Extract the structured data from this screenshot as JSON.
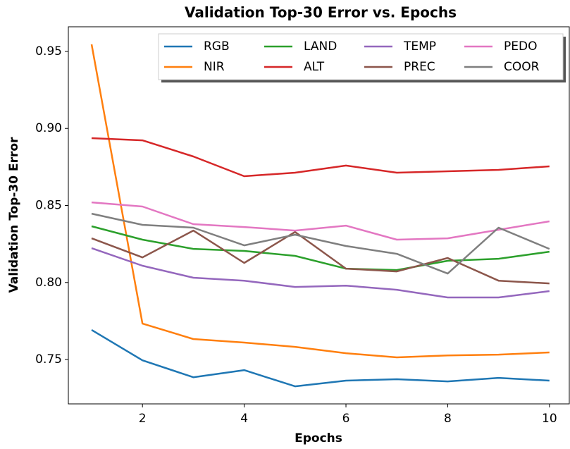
{
  "chart_data": {
    "type": "line",
    "title": "Validation Top-30 Error vs. Epochs",
    "xlabel": "Epochs",
    "ylabel": "Validation Top-30 Error",
    "x": [
      1,
      2,
      3,
      4,
      5,
      6,
      7,
      8,
      9,
      10
    ],
    "xlim": [
      0.543,
      10.39
    ],
    "xticks": [
      2,
      4,
      6,
      8,
      10
    ],
    "ylim": [
      0.7212,
      0.966
    ],
    "yticks": [
      0.75,
      {
        "value": 0.8,
        "label": "0.80"
      },
      0.85,
      {
        "value": 0.9,
        "label": "0.90"
      },
      0.95
    ],
    "legend": "upper right",
    "legend_columns": 4,
    "series": [
      {
        "name": "RGB",
        "color": "#1f77b4",
        "values": [
          0.7692,
          0.7495,
          0.7385,
          0.7431,
          0.7326,
          0.7363,
          0.7372,
          0.7358,
          0.7381,
          0.7363
        ]
      },
      {
        "name": "NIR",
        "color": "#ff7f0e",
        "values": [
          0.9546,
          0.7733,
          0.7633,
          0.761,
          0.7582,
          0.7541,
          0.7514,
          0.7527,
          0.7532,
          0.7546
        ]
      },
      {
        "name": "LAND",
        "color": "#2ca02c",
        "values": [
          0.8365,
          0.8278,
          0.8218,
          0.8205,
          0.8173,
          0.809,
          0.8081,
          0.8141,
          0.8154,
          0.82
        ]
      },
      {
        "name": "ALT",
        "color": "#d62728",
        "values": [
          0.8937,
          0.8923,
          0.8818,
          0.869,
          0.8713,
          0.8759,
          0.8713,
          0.8722,
          0.8731,
          0.8754
        ]
      },
      {
        "name": "TEMP",
        "color": "#9467bd",
        "values": [
          0.8223,
          0.8109,
          0.8031,
          0.8012,
          0.7971,
          0.798,
          0.7953,
          0.7903,
          0.7903,
          0.7944
        ]
      },
      {
        "name": "PREC",
        "color": "#8c564b",
        "values": [
          0.8287,
          0.8163,
          0.8337,
          0.8127,
          0.8328,
          0.809,
          0.8072,
          0.8159,
          0.8012,
          0.7994
        ]
      },
      {
        "name": "PEDO",
        "color": "#e377c2",
        "values": [
          0.852,
          0.8493,
          0.8379,
          0.836,
          0.8337,
          0.8369,
          0.8278,
          0.8287,
          0.8342,
          0.8397
        ]
      },
      {
        "name": "COOR",
        "color": "#7f7f7f",
        "values": [
          0.8447,
          0.8374,
          0.8356,
          0.8241,
          0.831,
          0.8237,
          0.8186,
          0.8058,
          0.8356,
          0.8218
        ]
      }
    ]
  }
}
